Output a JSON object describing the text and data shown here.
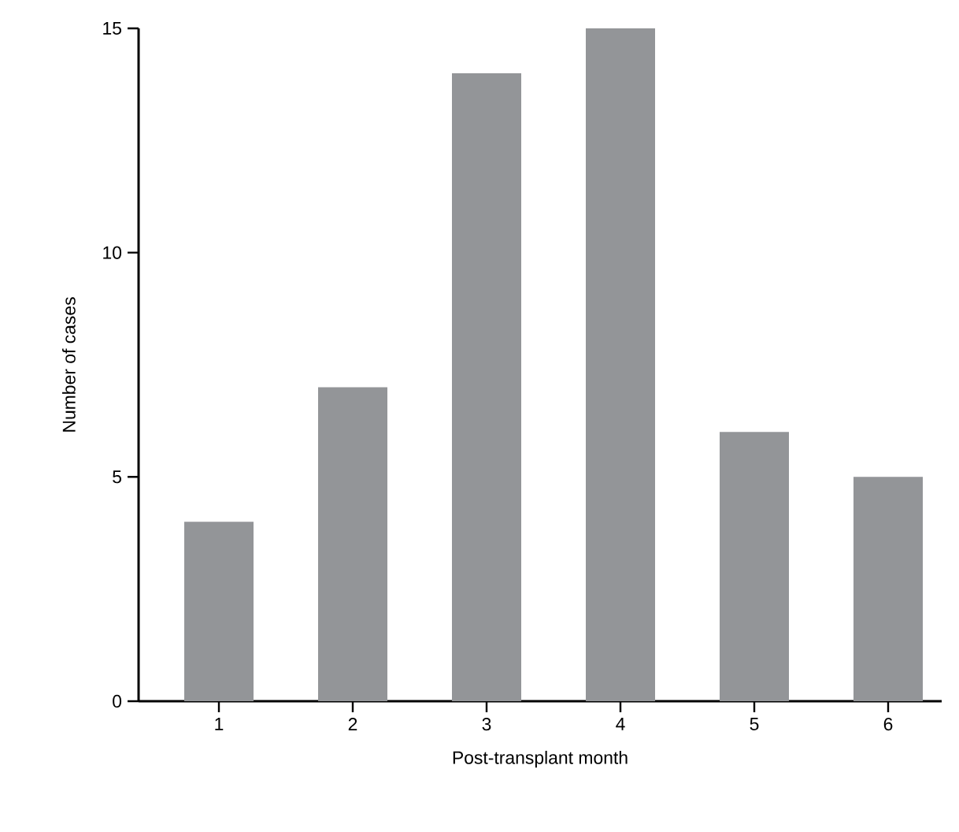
{
  "chart_data": {
    "type": "bar",
    "xlabel": "Post-transplant month",
    "ylabel": "Number of cases",
    "categories": [
      "1",
      "2",
      "3",
      "4",
      "5",
      "6"
    ],
    "values": [
      4,
      7,
      14,
      15,
      6,
      5
    ],
    "color": "#939598",
    "ylim": [
      0,
      15
    ],
    "yticks": [
      0,
      5,
      10,
      15
    ]
  }
}
